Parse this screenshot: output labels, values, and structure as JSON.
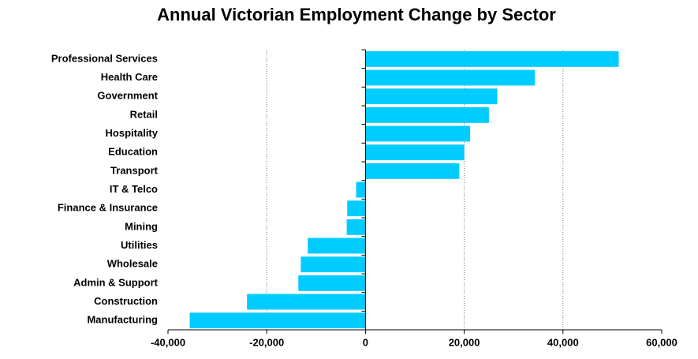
{
  "chart_data": {
    "type": "hbar",
    "title": "Annual Victorian Employment Change by Sector",
    "categories": [
      "Professional Services",
      "Health Care",
      "Government",
      "Retail",
      "Hospitality",
      "Education",
      "Transport",
      "IT & Telco",
      "Finance & Insurance",
      "Mining",
      "Utilities",
      "Wholesale",
      "Admin & Support",
      "Construction",
      "Manufacturing"
    ],
    "values": [
      51300,
      34300,
      26700,
      25000,
      21200,
      20000,
      19000,
      -1900,
      -3700,
      -3800,
      -11700,
      -13100,
      -13600,
      -24000,
      -35600
    ],
    "color": "#00ccff",
    "xlim": [
      -40000,
      60000
    ],
    "xticks": [
      {
        "value": -40000,
        "label": "-40,000"
      },
      {
        "value": -20000,
        "label": "-20,000"
      },
      0,
      {
        "value": 20000,
        "label": "20,000"
      },
      {
        "value": 40000,
        "label": "40,000"
      },
      {
        "value": 60000,
        "label": "60,000"
      }
    ],
    "grid": true
  }
}
